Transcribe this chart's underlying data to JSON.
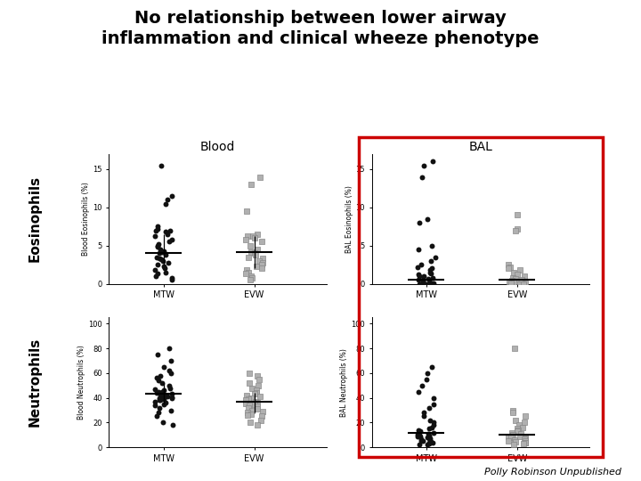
{
  "title_line1": "No relationship between lower airway",
  "title_line2": "inflammation and clinical wheeze phenotype",
  "title_fontsize": 14,
  "title_fontweight": "bold",
  "blood_label": "Blood",
  "bal_label": "BAL",
  "eosinophils_label": "Eosinophils",
  "neutrophils_label": "Neutrophils",
  "footnote": "Polly Robinson Unpublished",
  "mtw_label": "MTW",
  "evw_label": "EVW",
  "bal_box_color": "#cc0000",
  "blood_eos_mtw": [
    15.5,
    11.5,
    11.0,
    10.5,
    7.5,
    7.2,
    7.0,
    7.0,
    6.8,
    6.5,
    6.2,
    5.8,
    5.5,
    5.2,
    5.0,
    4.8,
    4.5,
    4.3,
    4.2,
    4.0,
    3.8,
    3.5,
    3.3,
    3.2,
    3.0,
    2.8,
    2.5,
    2.3,
    2.0,
    1.8,
    1.5,
    1.3,
    1.0,
    0.8,
    0.5
  ],
  "blood_eos_mtw_median": 4.0,
  "blood_eos_mtw_iqr_low": 2.5,
  "blood_eos_mtw_iqr_high": 6.5,
  "blood_eos_evw": [
    14.0,
    13.0,
    9.5,
    6.5,
    6.3,
    6.2,
    6.0,
    5.8,
    5.5,
    5.0,
    4.5,
    4.2,
    4.0,
    3.8,
    3.5,
    3.3,
    3.0,
    2.8,
    2.5,
    2.3,
    2.0,
    1.8,
    1.5,
    1.3,
    1.0,
    0.8,
    0.5
  ],
  "blood_eos_evw_median": 4.2,
  "blood_eos_evw_iqr_low": 2.0,
  "blood_eos_evw_iqr_high": 6.2,
  "bal_eos_mtw": [
    16.0,
    15.5,
    14.0,
    8.5,
    8.0,
    5.0,
    4.5,
    3.5,
    3.0,
    2.5,
    2.2,
    2.0,
    1.8,
    1.5,
    1.3,
    1.2,
    1.0,
    1.0,
    0.8,
    0.7,
    0.5,
    0.5,
    0.4,
    0.3,
    0.2,
    0.1,
    0.1,
    0.0,
    0.0,
    0.0,
    0.0,
    0.0,
    0.0
  ],
  "bal_eos_mtw_median": 0.5,
  "bal_eos_evw": [
    9.0,
    7.2,
    7.0,
    2.5,
    2.2,
    2.0,
    1.8,
    1.5,
    1.2,
    1.0,
    0.8,
    0.7,
    0.5,
    0.4,
    0.3,
    0.2,
    0.1,
    0.1,
    0.0,
    0.0,
    0.0
  ],
  "bal_eos_evw_median": 0.5,
  "blood_neu_mtw": [
    80.0,
    75.0,
    70.0,
    65.0,
    62.0,
    60.0,
    58.0,
    56.0,
    54.0,
    52.0,
    50.0,
    48.0,
    47.0,
    46.0,
    45.0,
    44.5,
    44.0,
    43.5,
    43.0,
    42.5,
    42.0,
    41.5,
    41.0,
    40.5,
    40.0,
    39.5,
    39.0,
    38.5,
    38.0,
    37.0,
    36.0,
    35.0,
    34.0,
    32.0,
    30.0,
    28.0,
    25.0,
    20.0,
    18.0
  ],
  "blood_neu_mtw_median": 43.0,
  "blood_neu_mtw_iqr_low": 35.0,
  "blood_neu_mtw_iqr_high": 52.0,
  "blood_neu_evw": [
    60.0,
    58.0,
    55.0,
    52.0,
    50.0,
    48.0,
    46.0,
    44.0,
    43.0,
    42.0,
    41.0,
    40.0,
    39.0,
    38.0,
    37.0,
    36.0,
    35.5,
    35.0,
    34.0,
    33.0,
    32.0,
    31.0,
    30.0,
    29.0,
    28.0,
    27.0,
    26.0,
    25.0,
    22.0,
    20.0,
    18.0
  ],
  "blood_neu_evw_median": 37.0,
  "blood_neu_evw_iqr_low": 28.0,
  "blood_neu_evw_iqr_high": 44.0,
  "bal_neu_mtw": [
    65.0,
    60.0,
    55.0,
    50.0,
    45.0,
    40.0,
    35.0,
    32.0,
    28.0,
    25.0,
    22.0,
    20.0,
    18.0,
    16.0,
    15.0,
    14.0,
    13.0,
    12.0,
    11.0,
    10.5,
    10.0,
    9.5,
    9.0,
    8.5,
    8.0,
    7.5,
    7.0,
    6.5,
    6.0,
    5.5,
    5.0,
    4.5,
    4.0,
    3.5,
    3.0,
    2.5,
    2.0
  ],
  "bal_neu_mtw_median": 12.0,
  "bal_neu_evw": [
    80.0,
    30.0,
    28.0,
    25.0,
    22.0,
    20.0,
    18.0,
    16.0,
    15.0,
    14.0,
    13.0,
    12.0,
    11.0,
    10.0,
    9.0,
    8.5,
    8.0,
    7.5,
    7.0,
    6.5,
    6.0,
    5.5,
    5.0,
    4.5,
    4.0,
    3.5,
    3.0,
    2.5
  ],
  "bal_neu_evw_median": 10.0,
  "dot_color_mtw": "#111111",
  "dot_color_evw": "#b0b0b0",
  "dot_size": 18
}
